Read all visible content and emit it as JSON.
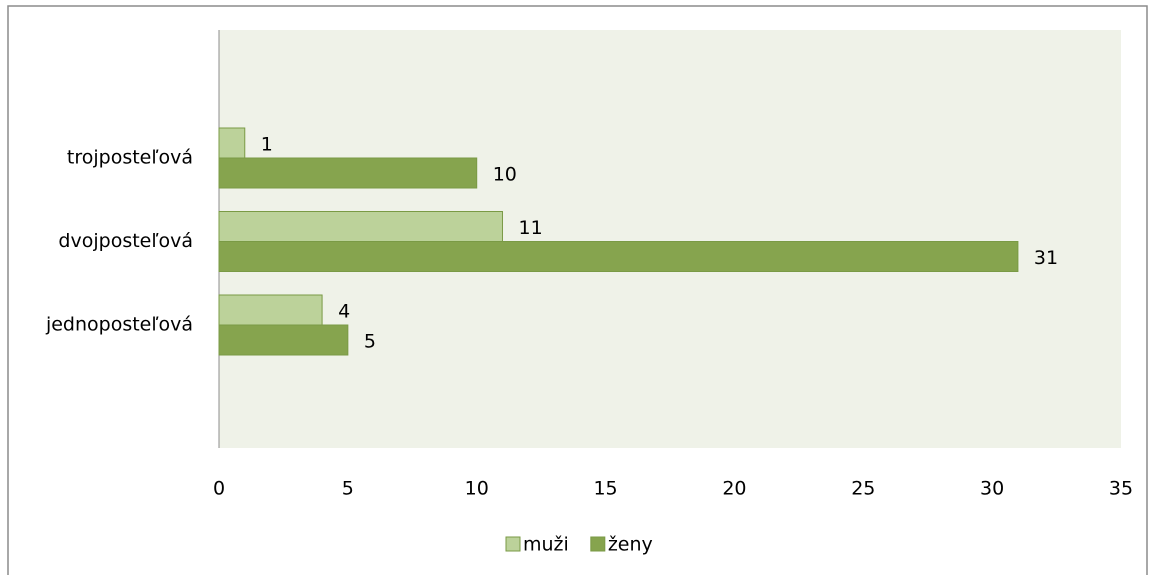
{
  "chart_data": {
    "type": "bar",
    "orientation": "horizontal",
    "categories": [
      "trojposteľová",
      "dvojposteľová",
      "jednoposteľová"
    ],
    "series": [
      {
        "name": "muži",
        "color": "#bcd29a",
        "values": [
          1,
          11,
          4
        ]
      },
      {
        "name": "ženy",
        "color": "#86a44e",
        "values": [
          10,
          31,
          5
        ]
      }
    ],
    "xlim": [
      0,
      35
    ],
    "xticks": [
      0,
      5,
      10,
      15,
      20,
      25,
      30,
      35
    ],
    "legend": "bottom",
    "grid": false
  }
}
